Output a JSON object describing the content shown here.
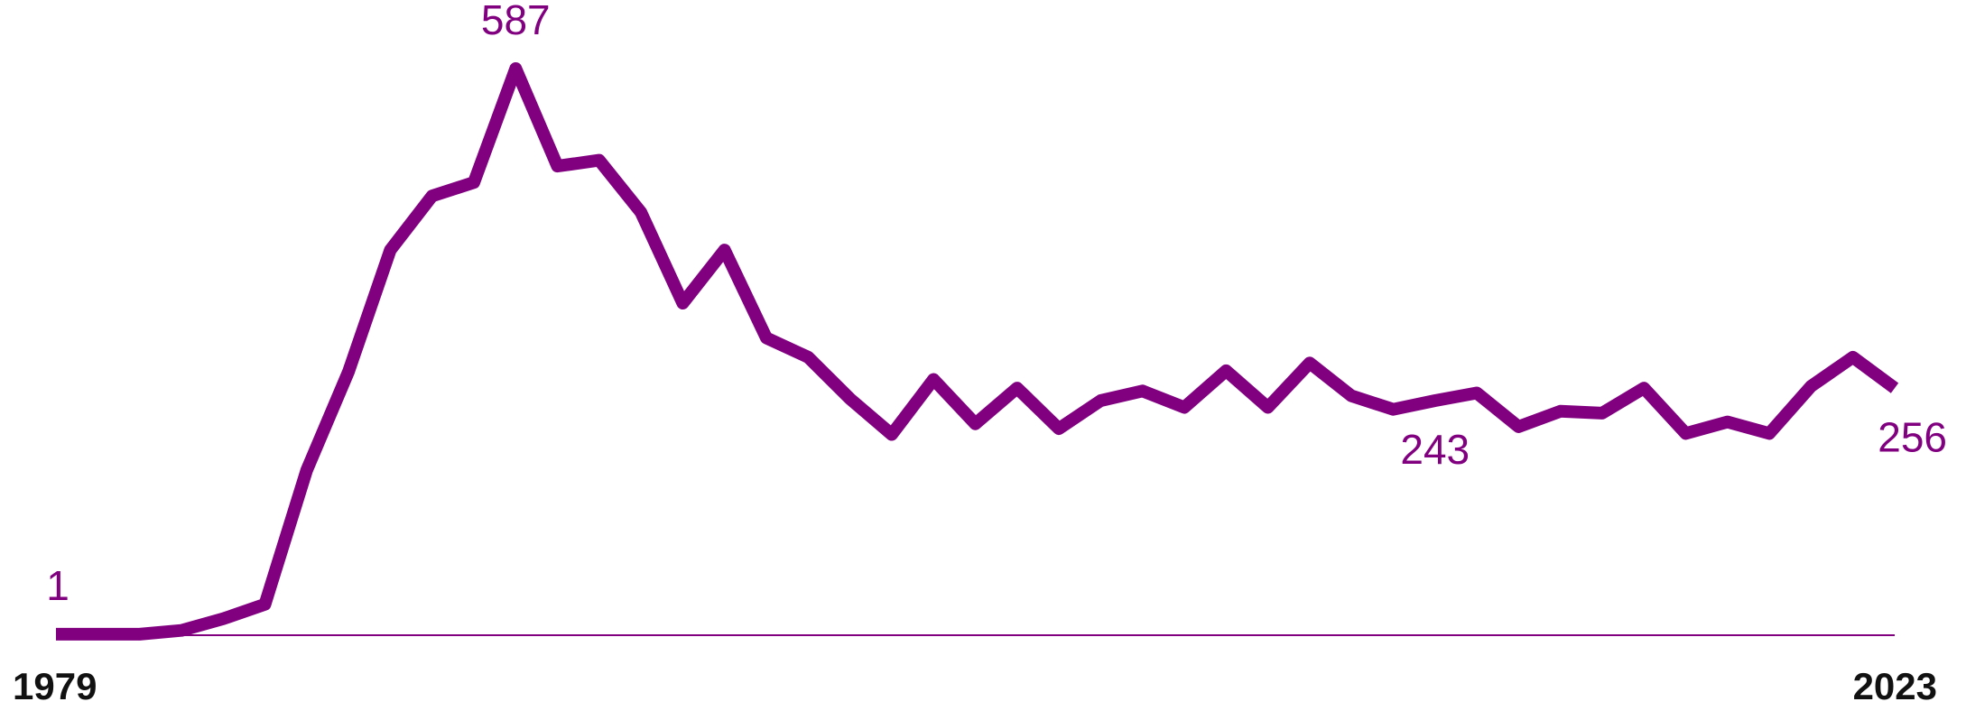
{
  "chart_data": {
    "type": "line",
    "x": [
      1979,
      1980,
      1981,
      1982,
      1983,
      1984,
      1985,
      1986,
      1987,
      1988,
      1989,
      1990,
      1991,
      1992,
      1993,
      1994,
      1995,
      1996,
      1997,
      1998,
      1999,
      2000,
      2001,
      2002,
      2003,
      2004,
      2005,
      2006,
      2007,
      2008,
      2009,
      2010,
      2011,
      2012,
      2013,
      2014,
      2015,
      2016,
      2017,
      2018,
      2019,
      2020,
      2021,
      2022,
      2023
    ],
    "series": [
      {
        "color": "#800080",
        "values": [
          1,
          1,
          1,
          5,
          17,
          32,
          171,
          273,
          399,
          455,
          469,
          587,
          486,
          492,
          438,
          344,
          399,
          308,
          288,
          245,
          208,
          265,
          219,
          256,
          214,
          243,
          253,
          236,
          274,
          236,
          282,
          248,
          234,
          243,
          251,
          216,
          232,
          230,
          256,
          209,
          221,
          209,
          258,
          288,
          256
        ]
      }
    ],
    "labeled_points": [
      0,
      11,
      33,
      44
    ],
    "xlim": [
      1979,
      2023
    ],
    "xticks": [
      1979,
      2023
    ],
    "ylim": [
      0,
      587
    ]
  }
}
